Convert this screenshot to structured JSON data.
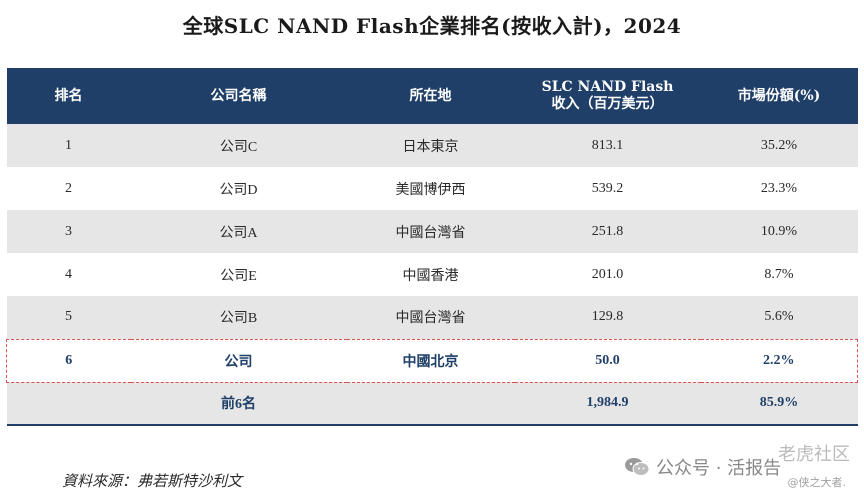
{
  "title": "全球SLC NAND Flash企業排名(按收入計)，2024",
  "table": {
    "headers": {
      "rank": "排名",
      "company": "公司名稱",
      "location": "所在地",
      "revenue_line1": "SLC NAND Flash",
      "revenue_line2": "收入（百万美元）",
      "share": "市場份額(%)"
    },
    "rows": [
      {
        "rank": "1",
        "company": "公司C",
        "location": "日本東京",
        "revenue": "813.1",
        "share": "35.2%"
      },
      {
        "rank": "2",
        "company": "公司D",
        "location": "美國博伊西",
        "revenue": "539.2",
        "share": "23.3%"
      },
      {
        "rank": "3",
        "company": "公司A",
        "location": "中國台灣省",
        "revenue": "251.8",
        "share": "10.9%"
      },
      {
        "rank": "4",
        "company": "公司E",
        "location": "中國香港",
        "revenue": "201.0",
        "share": "8.7%"
      },
      {
        "rank": "5",
        "company": "公司B",
        "location": "中國台灣省",
        "revenue": "129.8",
        "share": "5.6%"
      },
      {
        "rank": "6",
        "company": "公司",
        "location": "中國北京",
        "revenue": "50.0",
        "share": "2.2%"
      }
    ],
    "total": {
      "label": "前6名",
      "revenue": "1,984.9",
      "share": "85.9%"
    }
  },
  "source": "資料來源：弗若斯特沙利文",
  "watermark": {
    "site": "老虎社区",
    "account": "公众号 · 活报告",
    "author": "@侠之大者."
  }
}
